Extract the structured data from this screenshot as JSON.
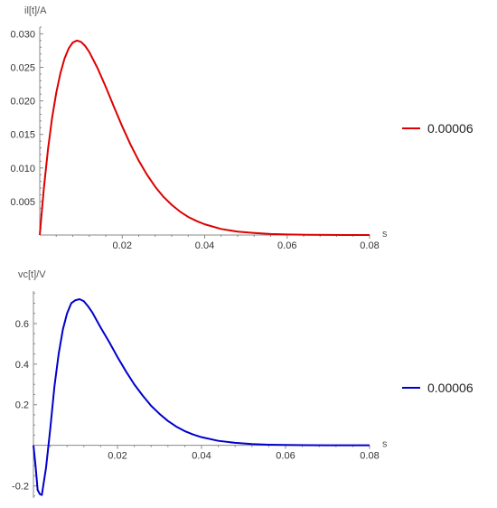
{
  "chart_data": [
    {
      "type": "line",
      "ylabel": "il[t]/A",
      "xlabel": "s",
      "xlim": [
        0,
        0.08
      ],
      "ylim": [
        0,
        0.031
      ],
      "x_ticks": [
        0.02,
        0.04,
        0.06,
        0.08
      ],
      "x_tick_labels": [
        "0.02",
        "0.04",
        "0.06",
        "0.08"
      ],
      "y_ticks": [
        0.005,
        0.01,
        0.015,
        0.02,
        0.025,
        0.03
      ],
      "y_tick_labels": [
        "0.005",
        "0.010",
        "0.015",
        "0.020",
        "0.025",
        "0.030"
      ],
      "legend_position": "right",
      "series": [
        {
          "name": "0.00006",
          "color": "#dd0000",
          "x": [
            0,
            0.001,
            0.002,
            0.003,
            0.004,
            0.005,
            0.006,
            0.007,
            0.008,
            0.009,
            0.01,
            0.011,
            0.012,
            0.014,
            0.016,
            0.018,
            0.02,
            0.022,
            0.024,
            0.026,
            0.028,
            0.03,
            0.032,
            0.034,
            0.036,
            0.038,
            0.04,
            0.044,
            0.048,
            0.052,
            0.056,
            0.06,
            0.065,
            0.07,
            0.075,
            0.08
          ],
          "y": [
            0,
            0.007,
            0.0128,
            0.0175,
            0.0212,
            0.0241,
            0.0263,
            0.0278,
            0.0287,
            0.029,
            0.0288,
            0.0282,
            0.0273,
            0.0249,
            0.0221,
            0.0191,
            0.0162,
            0.0135,
            0.0111,
            0.009,
            0.0072,
            0.0057,
            0.0045,
            0.0035,
            0.0027,
            0.0021,
            0.0016,
            0.0009,
            0.0005,
            0.0003,
            0.00015,
            8e-05,
            3e-05,
            1e-05,
            0,
            0
          ]
        }
      ]
    },
    {
      "type": "line",
      "ylabel": "vc[t]/V",
      "xlabel": "s",
      "xlim": [
        0,
        0.08
      ],
      "ylim": [
        -0.26,
        0.76
      ],
      "x_ticks": [
        0.02,
        0.04,
        0.06,
        0.08
      ],
      "x_tick_labels": [
        "0.02",
        "0.04",
        "0.06",
        "0.08"
      ],
      "y_ticks": [
        -0.2,
        0.2,
        0.4,
        0.6
      ],
      "y_tick_labels": [
        "-0.2",
        "0.2",
        "0.4",
        "0.6"
      ],
      "legend_position": "right",
      "series": [
        {
          "name": "0.00006",
          "color": "#0000cc",
          "x": [
            0,
            0.0005,
            0.001,
            0.0015,
            0.002,
            0.003,
            0.004,
            0.005,
            0.006,
            0.007,
            0.008,
            0.009,
            0.01,
            0.011,
            0.012,
            0.013,
            0.014,
            0.016,
            0.018,
            0.02,
            0.022,
            0.024,
            0.026,
            0.028,
            0.03,
            0.032,
            0.034,
            0.036,
            0.038,
            0.04,
            0.044,
            0.048,
            0.052,
            0.056,
            0.06,
            0.065,
            0.07,
            0.075,
            0.08
          ],
          "y": [
            0,
            -0.1,
            -0.22,
            -0.24,
            -0.245,
            -0.11,
            0.08,
            0.29,
            0.45,
            0.57,
            0.65,
            0.7,
            0.715,
            0.72,
            0.71,
            0.685,
            0.655,
            0.58,
            0.51,
            0.435,
            0.365,
            0.3,
            0.245,
            0.195,
            0.155,
            0.12,
            0.092,
            0.07,
            0.053,
            0.04,
            0.022,
            0.012,
            0.006,
            0.003,
            0.0015,
            0.0005,
            0.0002,
            0,
            0
          ]
        }
      ]
    }
  ]
}
